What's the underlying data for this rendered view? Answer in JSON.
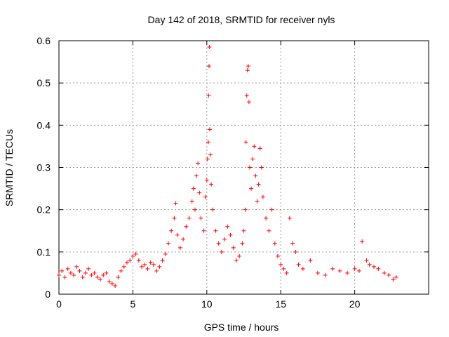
{
  "chart_data": {
    "type": "scatter",
    "title": "Day 142 of 2018, SRMTID for receiver nyls",
    "xlabel": "GPS time / hours",
    "ylabel": "SRMTID / TECUs",
    "xlim": [
      0,
      25
    ],
    "ylim": [
      0,
      0.6
    ],
    "xticks": [
      0,
      5,
      10,
      15,
      20
    ],
    "yticks": [
      0,
      0.1,
      0.2,
      0.3,
      0.4,
      0.5,
      0.6
    ],
    "xtick_labels": [
      "0",
      "5",
      "10",
      "15",
      "20"
    ],
    "ytick_labels": [
      "0",
      "0.1",
      "0.2",
      "0.3",
      "0.4",
      "0.5",
      "0.6"
    ],
    "grid": true,
    "marker": "+",
    "color": "#ff0000",
    "series": [
      {
        "name": "SRMTID",
        "points": [
          [
            0.0,
            0.045
          ],
          [
            0.2,
            0.055
          ],
          [
            0.4,
            0.04
          ],
          [
            0.6,
            0.06
          ],
          [
            0.8,
            0.05
          ],
          [
            1.0,
            0.045
          ],
          [
            1.2,
            0.065
          ],
          [
            1.4,
            0.055
          ],
          [
            1.6,
            0.04
          ],
          [
            1.8,
            0.05
          ],
          [
            2.0,
            0.06
          ],
          [
            2.2,
            0.045
          ],
          [
            2.4,
            0.05
          ],
          [
            2.6,
            0.04
          ],
          [
            2.8,
            0.035
          ],
          [
            3.0,
            0.045
          ],
          [
            3.2,
            0.05
          ],
          [
            3.4,
            0.03
          ],
          [
            3.6,
            0.025
          ],
          [
            3.8,
            0.02
          ],
          [
            4.0,
            0.04
          ],
          [
            4.2,
            0.055
          ],
          [
            4.4,
            0.065
          ],
          [
            4.6,
            0.075
          ],
          [
            4.8,
            0.08
          ],
          [
            5.0,
            0.09
          ],
          [
            5.2,
            0.095
          ],
          [
            5.4,
            0.08
          ],
          [
            5.6,
            0.065
          ],
          [
            5.8,
            0.07
          ],
          [
            6.0,
            0.06
          ],
          [
            6.2,
            0.075
          ],
          [
            6.4,
            0.07
          ],
          [
            6.6,
            0.055
          ],
          [
            6.8,
            0.065
          ],
          [
            7.0,
            0.08
          ],
          [
            7.2,
            0.095
          ],
          [
            7.4,
            0.12
          ],
          [
            7.6,
            0.15
          ],
          [
            7.8,
            0.18
          ],
          [
            7.9,
            0.215
          ],
          [
            8.0,
            0.14
          ],
          [
            8.2,
            0.11
          ],
          [
            8.4,
            0.13
          ],
          [
            8.6,
            0.16
          ],
          [
            8.8,
            0.18
          ],
          [
            9.0,
            0.22
          ],
          [
            9.1,
            0.25
          ],
          [
            9.2,
            0.2
          ],
          [
            9.3,
            0.28
          ],
          [
            9.4,
            0.31
          ],
          [
            9.5,
            0.24
          ],
          [
            9.6,
            0.18
          ],
          [
            9.8,
            0.15
          ],
          [
            9.9,
            0.23
          ],
          [
            10.0,
            0.27
          ],
          [
            10.05,
            0.32
          ],
          [
            10.1,
            0.36
          ],
          [
            10.12,
            0.47
          ],
          [
            10.15,
            0.54
          ],
          [
            10.17,
            0.585
          ],
          [
            10.2,
            0.39
          ],
          [
            10.25,
            0.33
          ],
          [
            10.3,
            0.26
          ],
          [
            10.4,
            0.2
          ],
          [
            10.6,
            0.15
          ],
          [
            10.8,
            0.12
          ],
          [
            11.0,
            0.1
          ],
          [
            11.2,
            0.13
          ],
          [
            11.4,
            0.16
          ],
          [
            11.6,
            0.14
          ],
          [
            11.8,
            0.11
          ],
          [
            12.0,
            0.08
          ],
          [
            12.2,
            0.09
          ],
          [
            12.4,
            0.12
          ],
          [
            12.5,
            0.15
          ],
          [
            12.6,
            0.2
          ],
          [
            12.65,
            0.36
          ],
          [
            12.7,
            0.47
          ],
          [
            12.75,
            0.53
          ],
          [
            12.8,
            0.54
          ],
          [
            12.85,
            0.455
          ],
          [
            12.9,
            0.3
          ],
          [
            13.0,
            0.25
          ],
          [
            13.1,
            0.32
          ],
          [
            13.2,
            0.35
          ],
          [
            13.3,
            0.28
          ],
          [
            13.4,
            0.22
          ],
          [
            13.5,
            0.26
          ],
          [
            13.6,
            0.345
          ],
          [
            13.7,
            0.3
          ],
          [
            13.8,
            0.23
          ],
          [
            14.0,
            0.18
          ],
          [
            14.2,
            0.15
          ],
          [
            14.4,
            0.2
          ],
          [
            14.6,
            0.12
          ],
          [
            14.8,
            0.09
          ],
          [
            15.0,
            0.07
          ],
          [
            15.2,
            0.06
          ],
          [
            15.4,
            0.05
          ],
          [
            15.6,
            0.18
          ],
          [
            15.8,
            0.12
          ],
          [
            16.0,
            0.1
          ],
          [
            16.2,
            0.07
          ],
          [
            16.5,
            0.06
          ],
          [
            17.0,
            0.08
          ],
          [
            17.5,
            0.05
          ],
          [
            18.0,
            0.045
          ],
          [
            18.5,
            0.06
          ],
          [
            19.0,
            0.055
          ],
          [
            19.5,
            0.05
          ],
          [
            20.0,
            0.06
          ],
          [
            20.3,
            0.055
          ],
          [
            20.5,
            0.125
          ],
          [
            20.8,
            0.08
          ],
          [
            21.0,
            0.07
          ],
          [
            21.3,
            0.065
          ],
          [
            21.6,
            0.06
          ],
          [
            22.0,
            0.05
          ],
          [
            22.3,
            0.045
          ],
          [
            22.6,
            0.035
          ],
          [
            22.8,
            0.04
          ]
        ]
      }
    ]
  }
}
